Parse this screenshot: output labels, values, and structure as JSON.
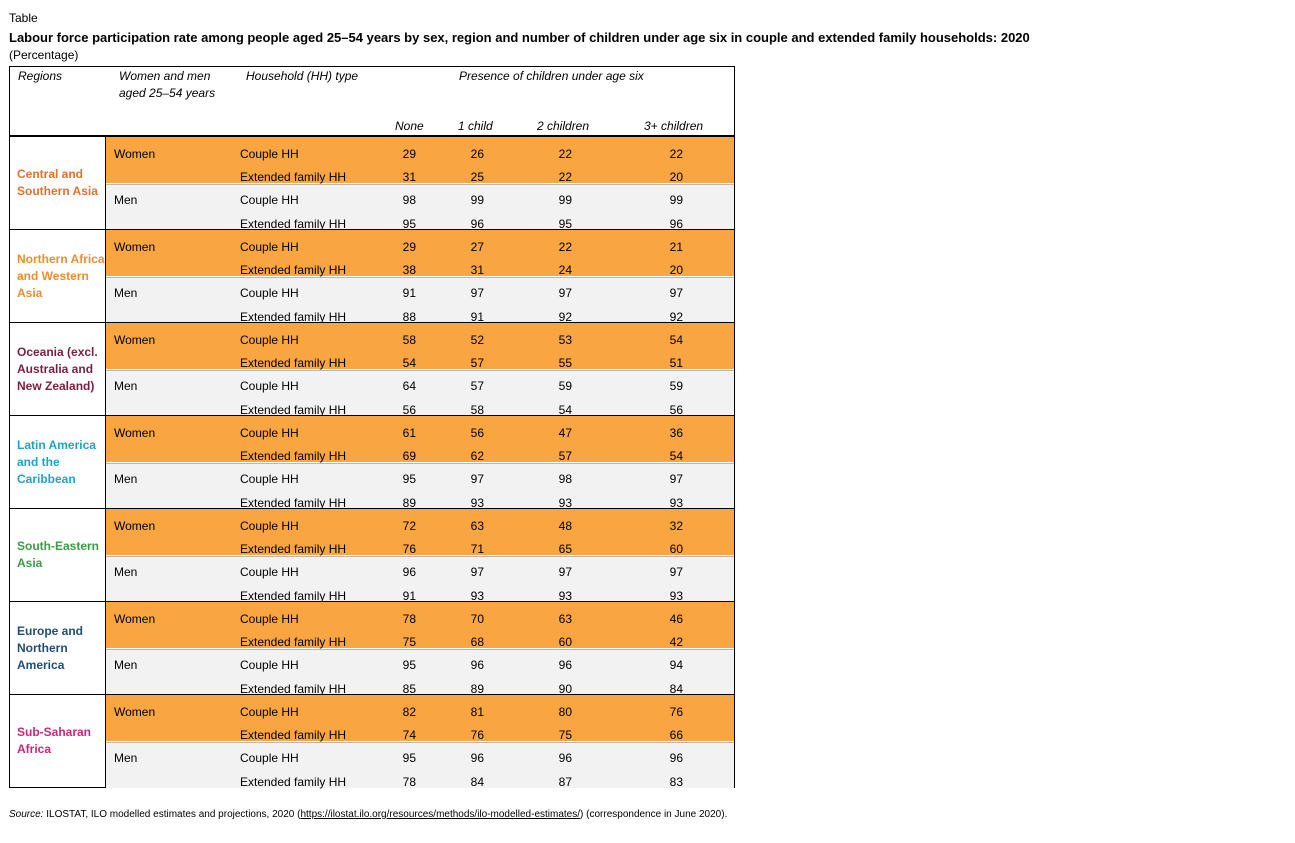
{
  "kind_label": "Table",
  "title": "Labour force participation rate among people aged 25–54 years by sex, region and number of children under age six in couple and extended family households: 2020",
  "unit": "(Percentage)",
  "headers": {
    "regions": "Regions",
    "sex_line1": "Women and men",
    "sex_line2": "aged 25–54 years",
    "household": "Household (HH) type",
    "presence": "Presence of children under age six",
    "none": "None",
    "one": "1 child",
    "two": "2 children",
    "three": "3+ children"
  },
  "colors": {
    "women_band": "#f9a541",
    "men_band": "#f2f2f2"
  },
  "blocks": [
    {
      "region": "Central and Southern Asia",
      "color": "#e4712b",
      "rows": [
        {
          "sex": "Women",
          "hh": "Couple HH",
          "v": [
            "29",
            "26",
            "22",
            "22"
          ]
        },
        {
          "sex": "",
          "hh": "Extended family HH",
          "v": [
            "31",
            "25",
            "22",
            "20"
          ]
        },
        {
          "sex": "Men",
          "hh": "Couple HH",
          "v": [
            "98",
            "99",
            "99",
            "99"
          ]
        },
        {
          "sex": "",
          "hh": "Extended family HH",
          "v": [
            "95",
            "96",
            "95",
            "96"
          ]
        }
      ]
    },
    {
      "region": "Northern Africa and Western Asia",
      "color": "#f08c2d",
      "rows": [
        {
          "sex": "Women",
          "hh": "Couple HH",
          "v": [
            "29",
            "27",
            "22",
            "21"
          ]
        },
        {
          "sex": "",
          "hh": "Extended family HH",
          "v": [
            "38",
            "31",
            "24",
            "20"
          ]
        },
        {
          "sex": "Men",
          "hh": "Couple HH",
          "v": [
            "91",
            "97",
            "97",
            "97"
          ]
        },
        {
          "sex": "",
          "hh": "Extended family HH",
          "v": [
            "88",
            "91",
            "92",
            "92"
          ]
        }
      ]
    },
    {
      "region": "Oceania (excl. Australia and New Zealand)",
      "color": "#7b1f3e",
      "rows": [
        {
          "sex": "Women",
          "hh": "Couple HH",
          "v": [
            "58",
            "52",
            "53",
            "54"
          ]
        },
        {
          "sex": "",
          "hh": "Extended family HH",
          "v": [
            "54",
            "57",
            "55",
            "51"
          ]
        },
        {
          "sex": "Men",
          "hh": "Couple HH",
          "v": [
            "64",
            "57",
            "59",
            "59"
          ]
        },
        {
          "sex": "",
          "hh": "Extended family HH",
          "v": [
            "56",
            "58",
            "54",
            "56"
          ]
        }
      ]
    },
    {
      "region": "Latin America and the Caribbean",
      "color": "#1fa3c8",
      "rows": [
        {
          "sex": "Women",
          "hh": "Couple HH",
          "v": [
            "61",
            "56",
            "47",
            "36"
          ]
        },
        {
          "sex": "",
          "hh": "Extended family HH",
          "v": [
            "69",
            "62",
            "57",
            "54"
          ]
        },
        {
          "sex": "Men",
          "hh": "Couple HH",
          "v": [
            "95",
            "97",
            "98",
            "97"
          ]
        },
        {
          "sex": "",
          "hh": "Extended family HH",
          "v": [
            "89",
            "93",
            "93",
            "93"
          ]
        }
      ]
    },
    {
      "region": "South-Eastern Asia",
      "color": "#3c9c45",
      "rows": [
        {
          "sex": "Women",
          "hh": "Couple HH",
          "v": [
            "72",
            "63",
            "48",
            "32"
          ]
        },
        {
          "sex": "",
          "hh": "Extended family HH",
          "v": [
            "76",
            "71",
            "65",
            "60"
          ]
        },
        {
          "sex": "Men",
          "hh": "Couple HH",
          "v": [
            "96",
            "97",
            "97",
            "97"
          ]
        },
        {
          "sex": "",
          "hh": "Extended family HH",
          "v": [
            "91",
            "93",
            "93",
            "93"
          ]
        }
      ]
    },
    {
      "region": "Europe and Northern America",
      "color": "#1f4e79",
      "rows": [
        {
          "sex": "Women",
          "hh": "Couple HH",
          "v": [
            "78",
            "70",
            "63",
            "46"
          ]
        },
        {
          "sex": "",
          "hh": "Extended family HH",
          "v": [
            "75",
            "68",
            "60",
            "42"
          ]
        },
        {
          "sex": "Men",
          "hh": "Couple HH",
          "v": [
            "95",
            "96",
            "96",
            "94"
          ]
        },
        {
          "sex": "",
          "hh": "Extended family HH",
          "v": [
            "85",
            "89",
            "90",
            "84"
          ]
        }
      ]
    },
    {
      "region": "Sub-Saharan Africa",
      "color": "#c8287a",
      "rows": [
        {
          "sex": "Women",
          "hh": "Couple HH",
          "v": [
            "82",
            "81",
            "80",
            "76"
          ]
        },
        {
          "sex": "",
          "hh": "Extended family HH",
          "v": [
            "74",
            "76",
            "75",
            "66"
          ]
        },
        {
          "sex": "Men",
          "hh": "Couple HH",
          "v": [
            "95",
            "96",
            "96",
            "96"
          ]
        },
        {
          "sex": "",
          "hh": "Extended family HH",
          "v": [
            "78",
            "84",
            "87",
            "83"
          ]
        }
      ]
    }
  ],
  "source": {
    "label": "Source:",
    "text_before": " ILOSTAT, ILO modelled estimates and projections, 2020 (",
    "link": "https://ilostat.ilo.org/resources/methods/ilo-modelled-estimates/",
    "text_after": ") (correspondence in June 2020)."
  }
}
